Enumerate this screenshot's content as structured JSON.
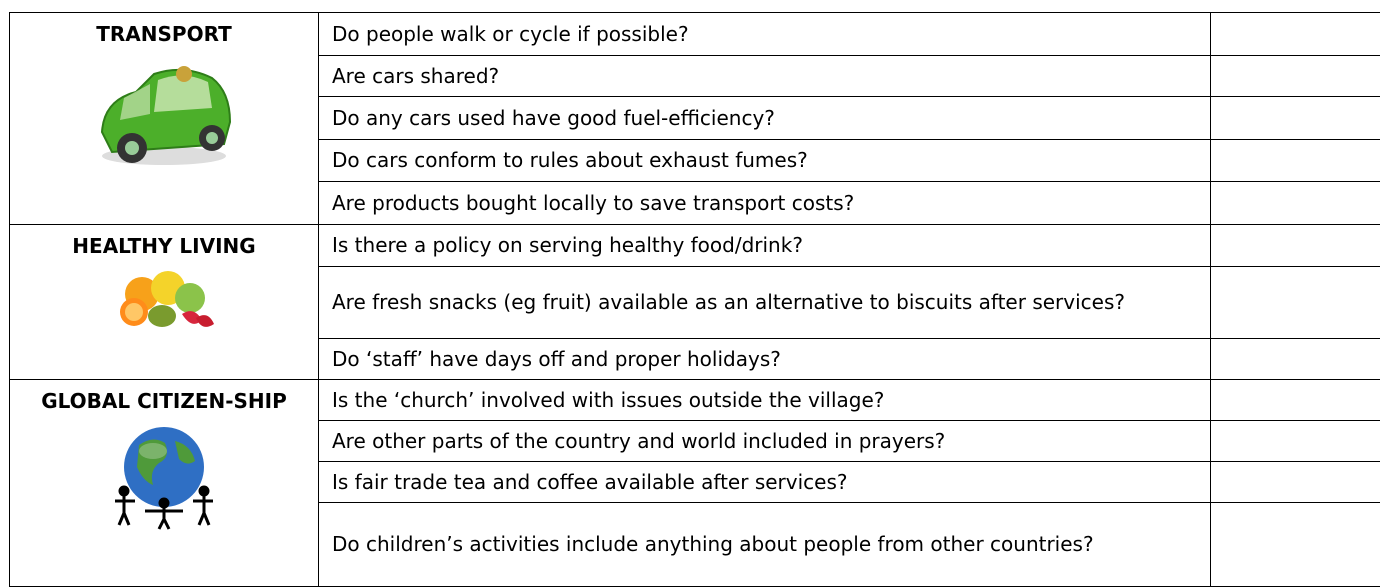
{
  "table": {
    "sections": [
      {
        "title": "TRANSPORT",
        "questions": [
          "Do people walk or cycle if possible?",
          "Are cars shared?",
          "Do any cars used have good fuel-efficiency?",
          "Do cars conform to rules about exhaust fumes?",
          "Are products bought locally to save transport costs?"
        ]
      },
      {
        "title": "HEALTHY LIVING",
        "questions": [
          "Is there a policy on serving healthy food/drink?",
          "Are fresh snacks (eg fruit) available as an alternative to biscuits after services?",
          "Do ‘staff’ have days off and proper holidays?"
        ]
      },
      {
        "title": "GLOBAL CITIZEN-SHIP",
        "questions": [
          "Is the ‘church’ involved with issues outside the village?",
          "Are other parts of the country and world included in prayers?",
          "Is fair trade tea and coffee available after services?",
          "Do children’s activities include anything about people from other countries?"
        ]
      }
    ]
  }
}
